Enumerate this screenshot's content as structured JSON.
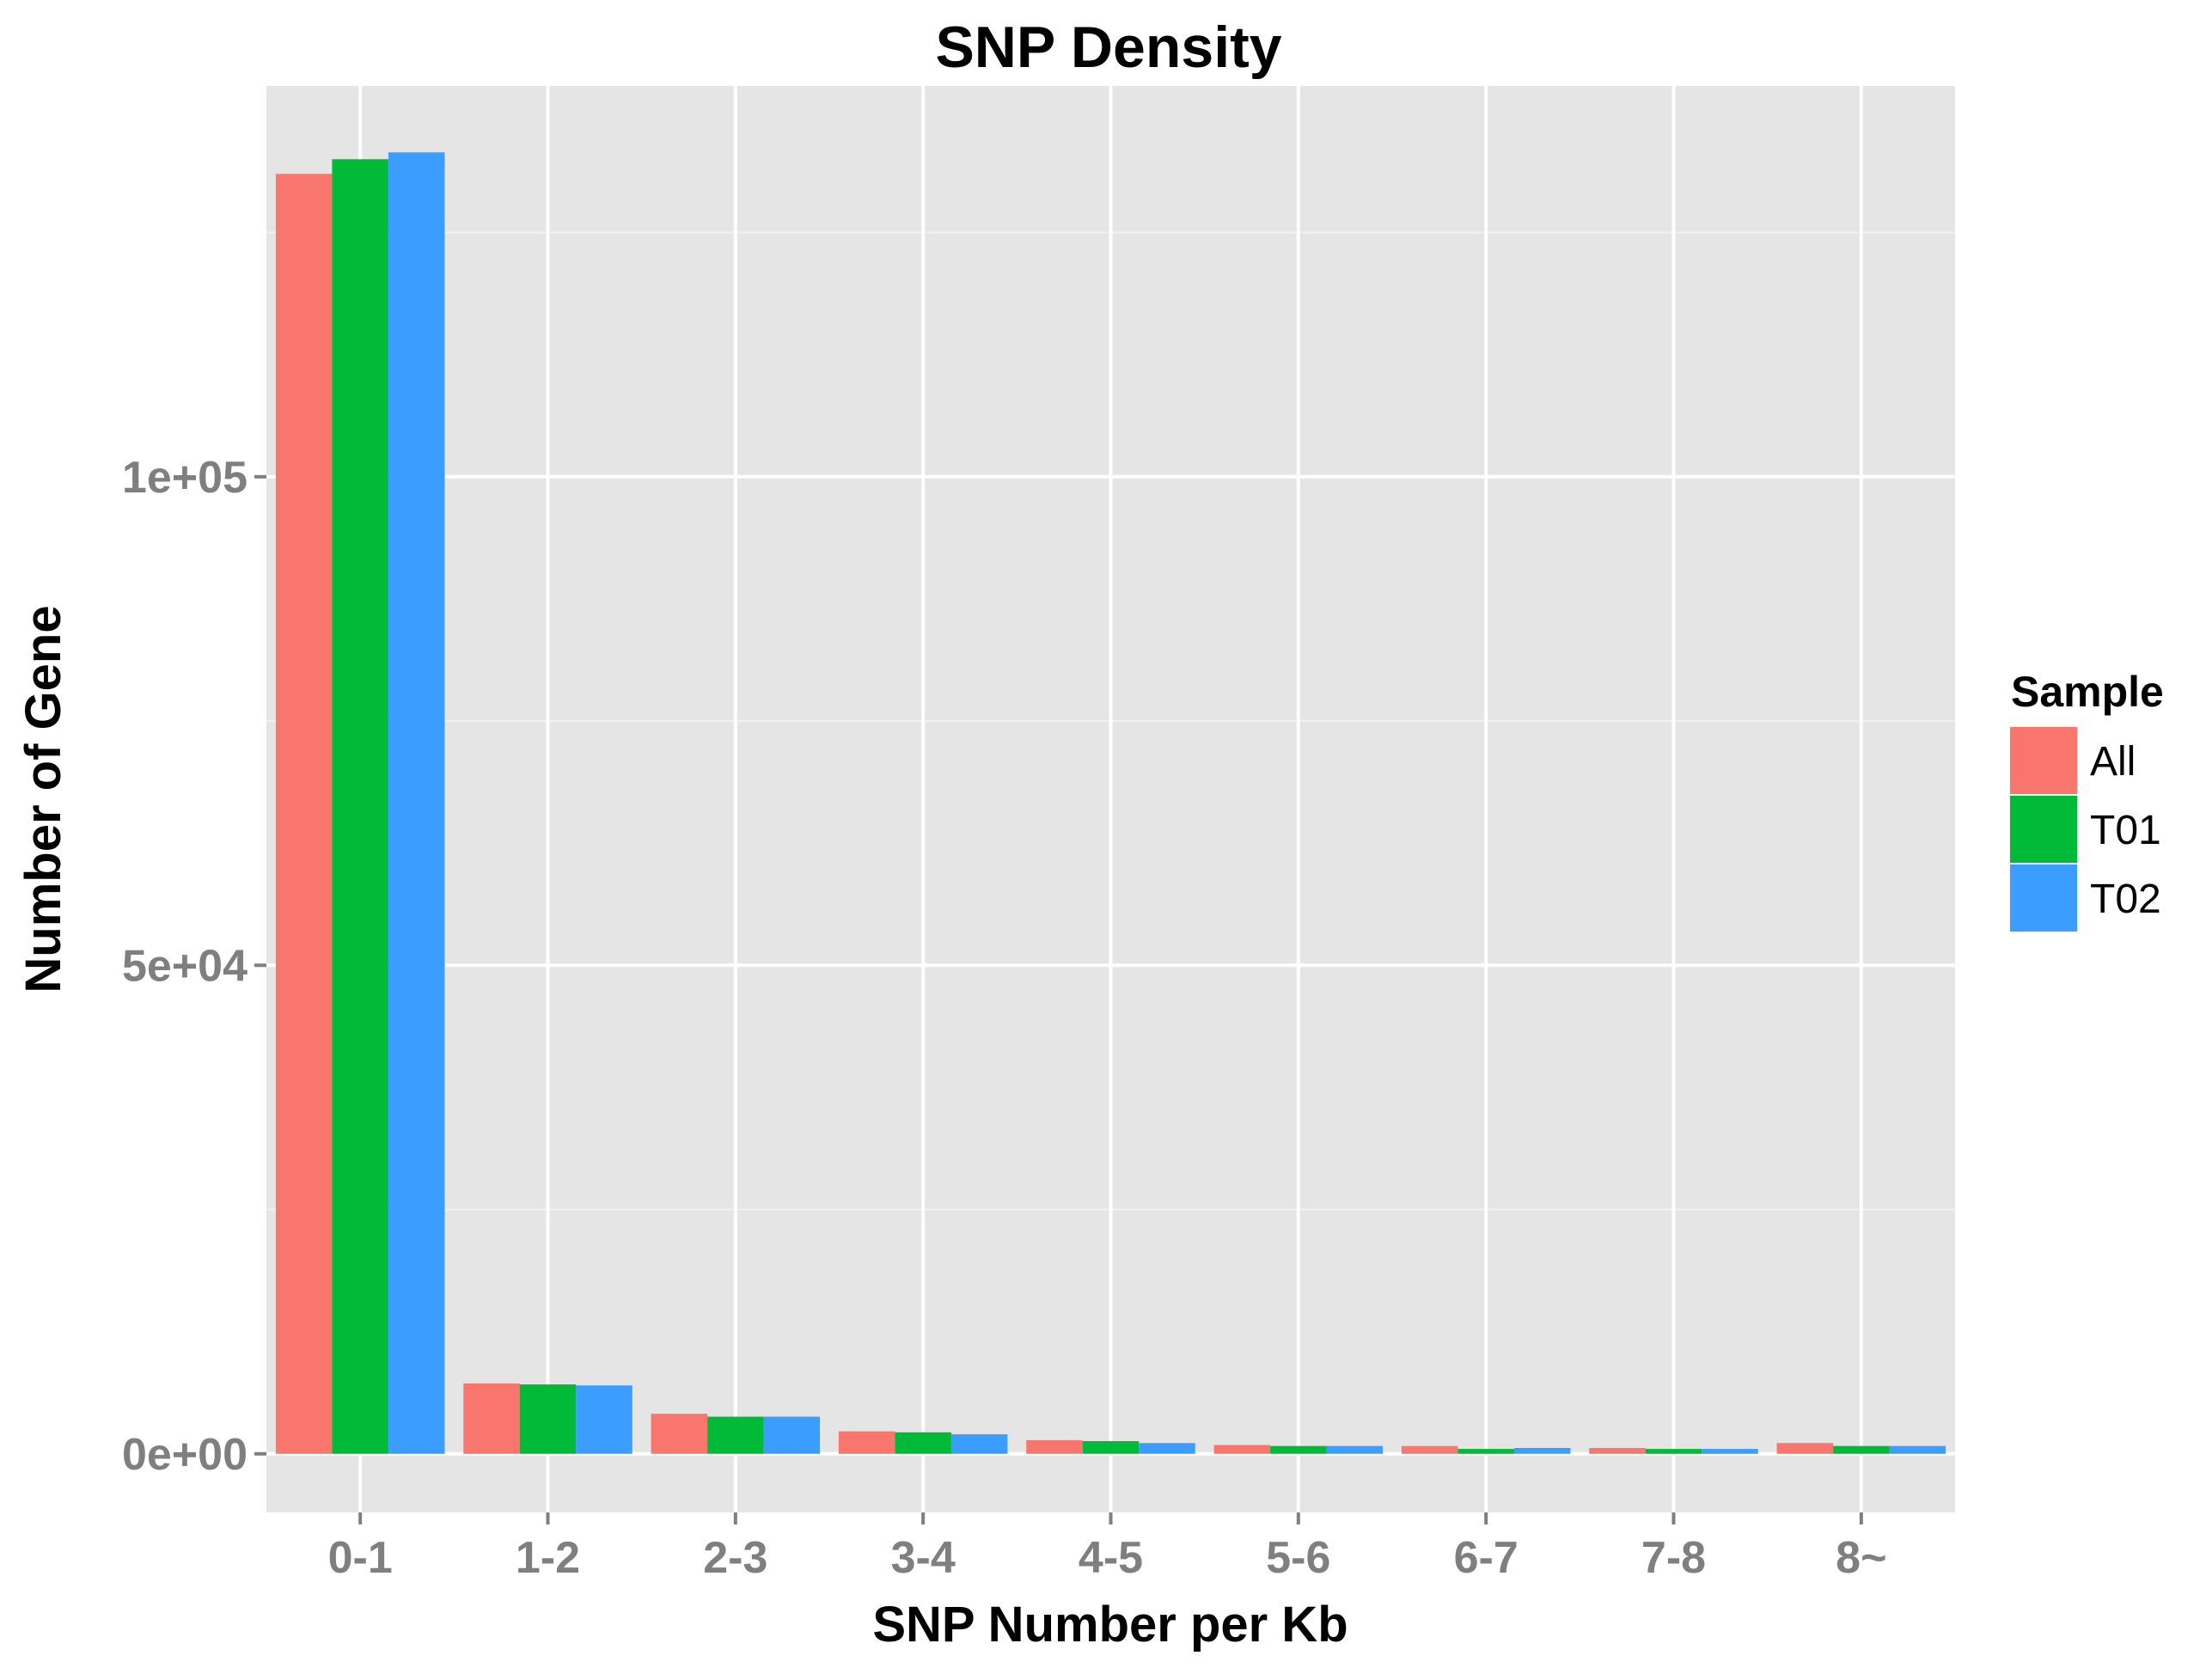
{
  "chart_data": {
    "type": "bar",
    "title": "SNP Density",
    "xlabel": "SNP Number per Kb",
    "ylabel": "Number of Gene",
    "categories": [
      "0-1",
      "1-2",
      "2-3",
      "3-4",
      "4-5",
      "5-6",
      "6-7",
      "7-8",
      "8~"
    ],
    "series": [
      {
        "name": "All",
        "color": "#F8766D",
        "values": [
          131000,
          7200,
          4100,
          2300,
          1400,
          900,
          800,
          600,
          1100
        ]
      },
      {
        "name": "T01",
        "color": "#00BA38",
        "values": [
          132500,
          7100,
          3800,
          2200,
          1300,
          800,
          500,
          500,
          800
        ]
      },
      {
        "name": "T02",
        "color": "#3B9DFF",
        "values": [
          133200,
          7000,
          3800,
          2000,
          1100,
          800,
          600,
          500,
          800
        ]
      }
    ],
    "ylim": [
      -6000,
      140000
    ],
    "yticks": [
      0,
      50000,
      100000
    ],
    "ytick_labels": [
      "0e+00",
      "5e+04",
      "1e+05"
    ],
    "grid": true,
    "legend": {
      "title": "Sample",
      "position": "right"
    },
    "background": "#E5E5E5"
  }
}
